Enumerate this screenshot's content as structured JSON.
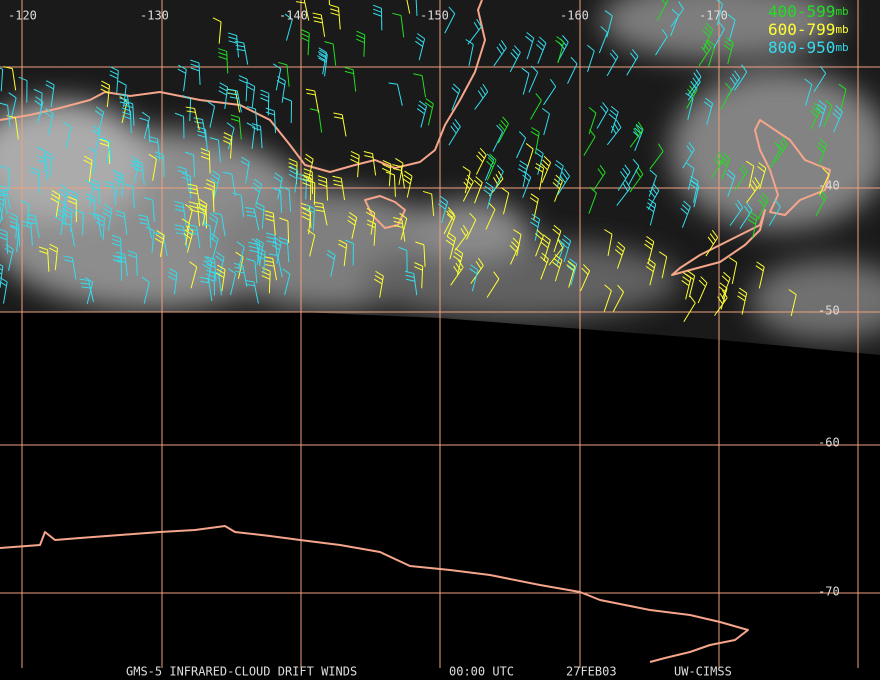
{
  "longitude_labels": [
    "-120",
    "-130",
    "-140",
    "-150",
    "-160",
    "-170"
  ],
  "latitude_labels": [
    "-40",
    "-50",
    "-60",
    "-70"
  ],
  "legend": [
    {
      "label": "400-599",
      "unit": "mb",
      "color": "#22dd22"
    },
    {
      "label": "600-799",
      "unit": "mb",
      "color": "#ffff33"
    },
    {
      "label": "800-950",
      "unit": "mb",
      "color": "#33ddee"
    }
  ],
  "footer": [
    "GMS-5 INFRARED-CLOUD DRIFT WINDS",
    "00:00 UTC",
    "27FEB03",
    "UW-CIMSS"
  ]
}
